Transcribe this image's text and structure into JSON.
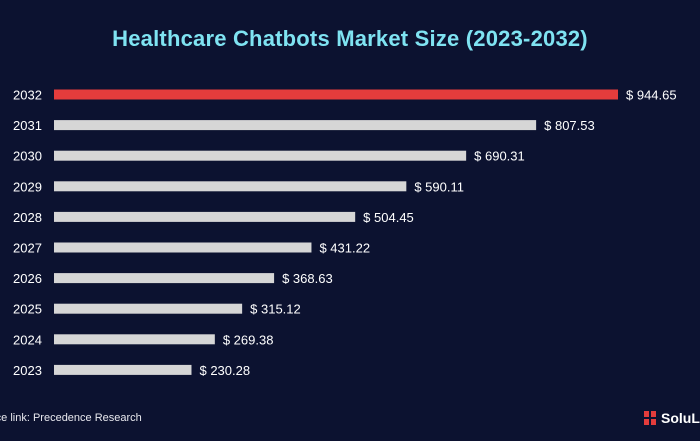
{
  "chart_data": {
    "type": "bar",
    "orientation": "horizontal",
    "title": "Healthcare Chatbots Market Size (2023-2032)",
    "categories": [
      "2032",
      "2031",
      "2030",
      "2029",
      "2028",
      "2027",
      "2026",
      "2025",
      "2024",
      "2023"
    ],
    "values": [
      944.65,
      807.53,
      690.31,
      590.11,
      504.45,
      431.22,
      368.63,
      315.12,
      269.38,
      230.28
    ],
    "value_labels": [
      "$ 944.65",
      "$ 807.53",
      "$ 690.31",
      "$ 590.11",
      "$ 504.45",
      "$ 431.22",
      "$ 368.63",
      "$ 315.12",
      "$ 269.38",
      "$ 230.28"
    ],
    "highlight_category": "2032",
    "xlim": [
      0,
      944.65
    ],
    "grid": false,
    "colors": {
      "background": "#0c1230",
      "title": "#7fe3f2",
      "bar": "#d6d6d6",
      "highlight_bar": "#e43c3c",
      "label": "#ffffff"
    }
  },
  "footer": {
    "source": "rce link: Precedence Research",
    "logo_text": "SoluL"
  }
}
